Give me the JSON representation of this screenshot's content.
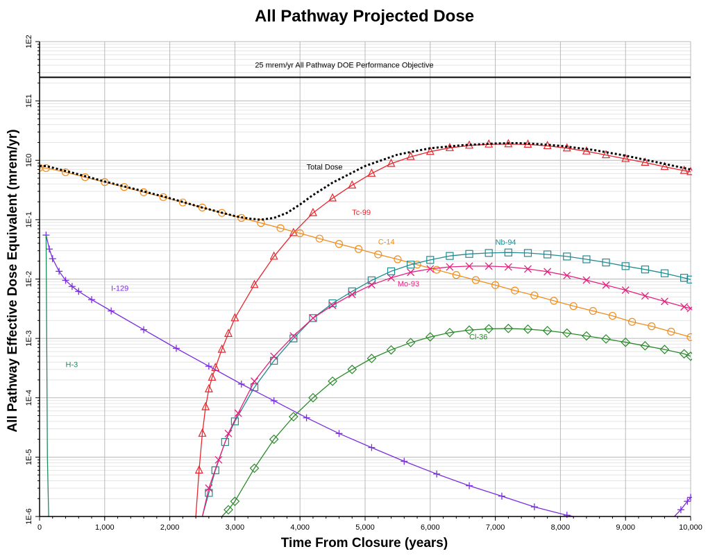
{
  "chart_data": {
    "type": "line",
    "title": "All Pathway Projected Dose",
    "xlabel": "Time From Closure (years)",
    "ylabel": "All Pathway Effective Dose Equivalent (mrem/yr)",
    "xlim": [
      0,
      10000
    ],
    "ylim": [
      1e-06,
      100
    ],
    "yscale": "log",
    "grid": true,
    "x_ticks": [
      0,
      1000,
      2000,
      3000,
      4000,
      5000,
      6000,
      7000,
      8000,
      9000,
      10000
    ],
    "x_tick_labels": [
      "0",
      "1,000",
      "2,000",
      "3,000",
      "4,000",
      "5,000",
      "6,000",
      "7,000",
      "8,000",
      "9,000",
      "10,000"
    ],
    "y_tick_labels": [
      "1E-6",
      "1E-5",
      "1E-4",
      "1E-3",
      "1E-2",
      "1E-1",
      "1E0",
      "1E1",
      "1E2"
    ],
    "reference_line": {
      "label": "25 mrem/yr All Pathway DOE Performance Objective",
      "y": 25,
      "color": "#000000"
    },
    "series": [
      {
        "name": "Total Dose",
        "color": "#000000",
        "style": "dotted",
        "marker": "none",
        "x": [
          0,
          100,
          500,
          1000,
          1500,
          2000,
          2500,
          3000,
          3200,
          3400,
          3600,
          3800,
          4000,
          4200,
          4500,
          5000,
          5500,
          6000,
          6500,
          7000,
          7300,
          7600,
          8000,
          8500,
          9000,
          9500,
          10000
        ],
        "y": [
          0.8,
          0.8,
          0.62,
          0.44,
          0.32,
          0.23,
          0.16,
          0.115,
          0.105,
          0.1,
          0.107,
          0.13,
          0.18,
          0.26,
          0.42,
          0.8,
          1.25,
          1.6,
          1.8,
          1.92,
          1.95,
          1.9,
          1.75,
          1.5,
          1.2,
          0.92,
          0.7
        ]
      },
      {
        "name": "Tc-99",
        "color": "#e8252c",
        "style": "solid",
        "marker": "triangle",
        "x": [
          2400,
          2450,
          2500,
          2550,
          2600,
          2650,
          2700,
          2800,
          2900,
          3000,
          3300,
          3600,
          3900,
          4200,
          4500,
          4800,
          5100,
          5400,
          5700,
          6000,
          6300,
          6600,
          6900,
          7200,
          7500,
          7800,
          8100,
          8400,
          8700,
          9000,
          9300,
          9600,
          9900,
          10000
        ],
        "y": [
          1e-06,
          6e-06,
          2.5e-05,
          7e-05,
          0.00014,
          0.00022,
          0.00032,
          0.00065,
          0.0012,
          0.0022,
          0.008,
          0.024,
          0.06,
          0.13,
          0.23,
          0.38,
          0.6,
          0.88,
          1.15,
          1.4,
          1.62,
          1.78,
          1.86,
          1.88,
          1.85,
          1.75,
          1.6,
          1.42,
          1.23,
          1.06,
          0.92,
          0.78,
          0.67,
          0.64
        ]
      },
      {
        "name": "C-14",
        "color": "#f08c1c",
        "style": "solid",
        "marker": "circle",
        "x": [
          0,
          100,
          400,
          700,
          1000,
          1300,
          1600,
          1900,
          2200,
          2500,
          2800,
          3100,
          3400,
          3700,
          4000,
          4300,
          4600,
          4900,
          5200,
          5500,
          5800,
          6100,
          6400,
          6700,
          7000,
          7300,
          7600,
          7900,
          8200,
          8500,
          8800,
          9100,
          9400,
          9700,
          10000
        ],
        "y": [
          0.75,
          0.74,
          0.63,
          0.52,
          0.43,
          0.355,
          0.29,
          0.24,
          0.195,
          0.16,
          0.13,
          0.107,
          0.088,
          0.072,
          0.059,
          0.048,
          0.039,
          0.032,
          0.026,
          0.0215,
          0.0175,
          0.0143,
          0.0117,
          0.0096,
          0.0079,
          0.0064,
          0.0053,
          0.0043,
          0.0035,
          0.0029,
          0.0024,
          0.0019,
          0.0016,
          0.0013,
          0.00105
        ]
      },
      {
        "name": "Nb-94",
        "color": "#1f8a8f",
        "style": "solid",
        "marker": "square",
        "x": [
          2500,
          2600,
          2700,
          2850,
          3000,
          3300,
          3600,
          3900,
          4200,
          4500,
          4800,
          5100,
          5400,
          5700,
          6000,
          6300,
          6600,
          6900,
          7200,
          7500,
          7800,
          8100,
          8400,
          8700,
          9000,
          9300,
          9600,
          9900,
          10000
        ],
        "y": [
          1e-06,
          2.5e-06,
          6e-06,
          1.8e-05,
          4e-05,
          0.00015,
          0.00042,
          0.001,
          0.0022,
          0.0039,
          0.0062,
          0.0095,
          0.0135,
          0.0175,
          0.021,
          0.0245,
          0.0265,
          0.0275,
          0.028,
          0.0275,
          0.026,
          0.024,
          0.0215,
          0.019,
          0.0165,
          0.0145,
          0.0125,
          0.0105,
          0.0098
        ]
      },
      {
        "name": "Mo-93",
        "color": "#e81e7e",
        "style": "solid",
        "marker": "x",
        "x": [
          2500,
          2600,
          2750,
          2900,
          3050,
          3300,
          3600,
          3900,
          4200,
          4500,
          4800,
          5100,
          5400,
          5700,
          6000,
          6300,
          6600,
          6900,
          7200,
          7500,
          7800,
          8100,
          8400,
          8700,
          9000,
          9300,
          9600,
          9900,
          10000
        ],
        "y": [
          1e-06,
          3e-06,
          9e-06,
          2.5e-05,
          5.5e-05,
          0.00019,
          0.0005,
          0.0011,
          0.0022,
          0.0036,
          0.0055,
          0.008,
          0.0105,
          0.013,
          0.0148,
          0.016,
          0.0165,
          0.0165,
          0.016,
          0.0148,
          0.0133,
          0.0115,
          0.0096,
          0.0079,
          0.0065,
          0.0052,
          0.0042,
          0.0034,
          0.0032
        ]
      },
      {
        "name": "Cl-36",
        "color": "#2a8a2a",
        "style": "solid",
        "marker": "diamond",
        "x": [
          2800,
          2900,
          3000,
          3300,
          3600,
          3900,
          4200,
          4500,
          4800,
          5100,
          5400,
          5700,
          6000,
          6300,
          6600,
          6900,
          7200,
          7500,
          7800,
          8100,
          8400,
          8700,
          9000,
          9300,
          9600,
          9900,
          10000
        ],
        "y": [
          1e-06,
          1.3e-06,
          1.8e-06,
          6.5e-06,
          2e-05,
          4.8e-05,
          0.0001,
          0.00019,
          0.0003,
          0.00046,
          0.00064,
          0.00085,
          0.00106,
          0.00125,
          0.00138,
          0.00145,
          0.00147,
          0.00143,
          0.00135,
          0.00123,
          0.0011,
          0.00098,
          0.00086,
          0.00075,
          0.00065,
          0.00055,
          0.0005
        ]
      },
      {
        "name": "I-129",
        "color": "#7b2be0",
        "style": "solid",
        "marker": "plus",
        "x": [
          100,
          150,
          200,
          300,
          400,
          500,
          600,
          800,
          1100,
          1600,
          2100,
          2600,
          3100,
          3600,
          4100,
          4600,
          5100,
          5600,
          6100,
          6600,
          7100,
          7600,
          8100,
          8200
        ],
        "y": [
          0.055,
          0.032,
          0.022,
          0.0135,
          0.0095,
          0.0075,
          0.0062,
          0.0045,
          0.0029,
          0.0014,
          0.00068,
          0.00034,
          0.00017,
          8.9e-05,
          4.6e-05,
          2.5e-05,
          1.45e-05,
          8.5e-06,
          5.2e-06,
          3.3e-06,
          2.2e-06,
          1.45e-06,
          1.05e-06,
          1e-06
        ]
      },
      {
        "name": "I-129 (late rise)",
        "color": "#7b2be0",
        "style": "solid",
        "marker": "plus",
        "x": [
          9750,
          9850,
          9950,
          10000
        ],
        "y": [
          1e-06,
          1.3e-06,
          1.8e-06,
          2.1e-06
        ]
      },
      {
        "name": "H-3",
        "color": "#1e8a5e",
        "style": "solid",
        "marker": "none",
        "x": [
          100,
          110,
          120,
          140
        ],
        "y": [
          0.055,
          0.001,
          1e-05,
          1e-06
        ]
      }
    ],
    "annotations": [
      {
        "text": "Total Dose",
        "x": 4100,
        "y": 0.7,
        "color": "#000000"
      },
      {
        "text": "Tc-99",
        "x": 4800,
        "y": 0.12,
        "color": "#e8252c"
      },
      {
        "text": "C-14",
        "x": 5200,
        "y": 0.0385,
        "color": "#f08c1c"
      },
      {
        "text": "Nb-94",
        "x": 7000,
        "y": 0.038,
        "color": "#1f8a8f"
      },
      {
        "text": "Mo-93",
        "x": 5500,
        "y": 0.0075,
        "color": "#e81e7e"
      },
      {
        "text": "Cl-36",
        "x": 6600,
        "y": 0.00097,
        "color": "#2a8a2a"
      },
      {
        "text": "I-129",
        "x": 1100,
        "y": 0.0063,
        "color": "#7b2be0"
      },
      {
        "text": "H-3",
        "x": 400,
        "y": 0.00033,
        "color": "#1e8a5e"
      }
    ]
  }
}
